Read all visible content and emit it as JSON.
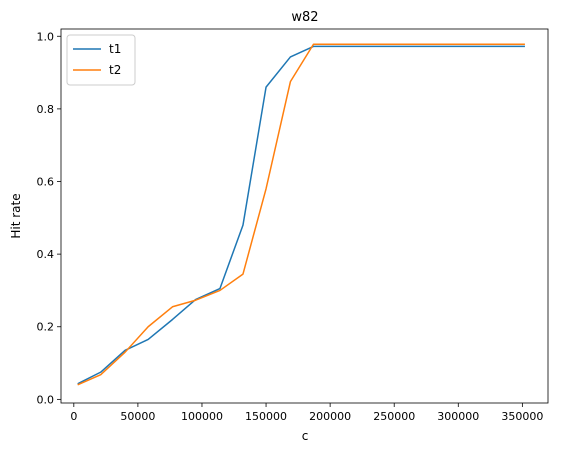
{
  "chart_data": {
    "type": "line",
    "title": "w82",
    "xlabel": "c",
    "ylabel": "Hit rate",
    "xlim": [
      -10000,
      370000
    ],
    "ylim": [
      -0.01,
      1.02
    ],
    "xticks": [
      0,
      50000,
      100000,
      150000,
      200000,
      250000,
      300000,
      350000
    ],
    "yticks": [
      0.0,
      0.2,
      0.4,
      0.6,
      0.8,
      1.0
    ],
    "xtick_labels": [
      "0",
      "50000",
      "100000",
      "150000",
      "200000",
      "250000",
      "300000",
      "350000"
    ],
    "ytick_labels": [
      "0.0",
      "0.2",
      "0.4",
      "0.6",
      "0.8",
      "1.0"
    ],
    "grid": false,
    "legend_position": "top-left",
    "series": [
      {
        "name": "t1",
        "color": "#1f77b4",
        "x": [
          3000,
          21000,
          40000,
          58000,
          77000,
          95000,
          114000,
          132000,
          150000,
          169000,
          187000,
          352000
        ],
        "y": [
          0.043,
          0.075,
          0.135,
          0.165,
          0.22,
          0.275,
          0.305,
          0.48,
          0.86,
          0.943,
          0.972,
          0.972
        ]
      },
      {
        "name": "t2",
        "color": "#ff7f0e",
        "x": [
          3000,
          21000,
          40000,
          58000,
          77000,
          95000,
          114000,
          132000,
          150000,
          169000,
          187000,
          352000
        ],
        "y": [
          0.04,
          0.068,
          0.13,
          0.2,
          0.255,
          0.273,
          0.3,
          0.345,
          0.58,
          0.875,
          0.978,
          0.978
        ]
      }
    ]
  }
}
